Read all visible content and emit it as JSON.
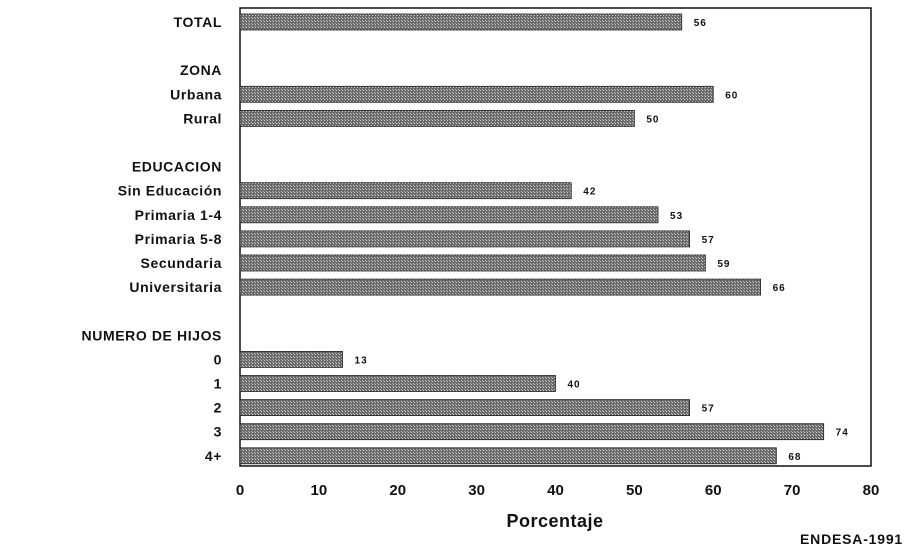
{
  "chart_data": {
    "type": "bar",
    "orientation": "horizontal",
    "rows": [
      {
        "kind": "bar",
        "label": "TOTAL",
        "value": 56
      },
      {
        "kind": "gap"
      },
      {
        "kind": "header",
        "label": "ZONA"
      },
      {
        "kind": "bar",
        "label": "Urbana",
        "value": 60
      },
      {
        "kind": "bar",
        "label": "Rural",
        "value": 50
      },
      {
        "kind": "gap"
      },
      {
        "kind": "header",
        "label": "EDUCACION"
      },
      {
        "kind": "bar",
        "label": "Sin Educación",
        "value": 42
      },
      {
        "kind": "bar",
        "label": "Primaria 1-4",
        "value": 53
      },
      {
        "kind": "bar",
        "label": "Primaria 5-8",
        "value": 57
      },
      {
        "kind": "bar",
        "label": "Secundaria",
        "value": 59
      },
      {
        "kind": "bar",
        "label": "Universitaria",
        "value": 66
      },
      {
        "kind": "gap"
      },
      {
        "kind": "header",
        "label": "NUMERO DE HIJOS"
      },
      {
        "kind": "bar",
        "label": "0",
        "value": 13
      },
      {
        "kind": "bar",
        "label": "1",
        "value": 40
      },
      {
        "kind": "bar",
        "label": "2",
        "value": 57
      },
      {
        "kind": "bar",
        "label": "3",
        "value": 74
      },
      {
        "kind": "bar",
        "label": "4+",
        "value": 68
      }
    ],
    "xlabel": "Porcentaje",
    "xlim": [
      0,
      80
    ],
    "xticks": [
      0,
      10,
      20,
      30,
      40,
      50,
      60,
      70,
      80
    ],
    "source": "ENDESA-1991",
    "grid": false
  }
}
